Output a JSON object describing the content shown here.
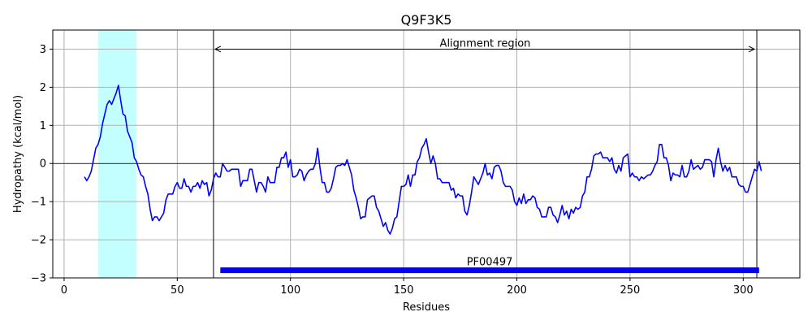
{
  "chart_data": {
    "type": "line",
    "title": "Q9F3K5",
    "xlabel": "Residues",
    "ylabel": "Hydropathy (kcal/mol)",
    "xlim": [
      -5,
      325
    ],
    "ylim": [
      -3,
      3.5
    ],
    "xticks": [
      0,
      50,
      100,
      150,
      200,
      250,
      300
    ],
    "yticks": [
      -3,
      -2,
      -1,
      0,
      1,
      2,
      3
    ],
    "xtick_labels": [
      "0",
      "50",
      "100",
      "150",
      "200",
      "250",
      "300"
    ],
    "ytick_labels": [
      "−3",
      "−2",
      "−1",
      "0",
      "1",
      "2",
      "3"
    ],
    "grid": true,
    "colors": {
      "line": "#0000ff",
      "highlight": "#c4ffff",
      "domain_bar": "#0000ff",
      "axes": "#000000",
      "grid": "#b0b0b0"
    },
    "highlight_region": [
      15,
      32
    ],
    "alignment_region": {
      "label": "Alignment region",
      "start": 66,
      "end": 306,
      "y": 3.0
    },
    "domain": {
      "label": "PF00497",
      "start": 69,
      "end": 307,
      "y": -2.8
    },
    "series": [
      {
        "points": [
          [
            9,
            -0.35
          ],
          [
            10,
            -0.45
          ],
          [
            11,
            -0.35
          ],
          [
            12,
            -0.2
          ],
          [
            13,
            0.1
          ],
          [
            14,
            0.4
          ],
          [
            15,
            0.5
          ],
          [
            16,
            0.7
          ],
          [
            17,
            1.05
          ],
          [
            18,
            1.3
          ],
          [
            19,
            1.55
          ],
          [
            20,
            1.65
          ],
          [
            21,
            1.55
          ],
          [
            22,
            1.7
          ],
          [
            23,
            1.85
          ],
          [
            24,
            2.05
          ],
          [
            25,
            1.65
          ],
          [
            26,
            1.3
          ],
          [
            27,
            1.25
          ],
          [
            28,
            0.85
          ],
          [
            29,
            0.7
          ],
          [
            30,
            0.55
          ],
          [
            31,
            0.15
          ],
          [
            32,
            0.05
          ],
          [
            33,
            -0.15
          ],
          [
            34,
            -0.3
          ],
          [
            35,
            -0.35
          ],
          [
            36,
            -0.6
          ],
          [
            37,
            -0.8
          ],
          [
            38,
            -1.2
          ],
          [
            39,
            -1.5
          ],
          [
            40,
            -1.4
          ],
          [
            41,
            -1.4
          ],
          [
            42,
            -1.5
          ],
          [
            43,
            -1.4
          ],
          [
            44,
            -1.3
          ],
          [
            45,
            -0.95
          ],
          [
            46,
            -0.8
          ],
          [
            47,
            -0.8
          ],
          [
            48,
            -0.8
          ],
          [
            49,
            -0.6
          ],
          [
            50,
            -0.5
          ],
          [
            51,
            -0.65
          ],
          [
            52,
            -0.65
          ],
          [
            53,
            -0.4
          ],
          [
            54,
            -0.6
          ],
          [
            55,
            -0.6
          ],
          [
            56,
            -0.75
          ],
          [
            57,
            -0.6
          ],
          [
            58,
            -0.6
          ],
          [
            59,
            -0.5
          ],
          [
            60,
            -0.65
          ],
          [
            61,
            -0.45
          ],
          [
            62,
            -0.55
          ],
          [
            63,
            -0.5
          ],
          [
            64,
            -0.85
          ],
          [
            65,
            -0.7
          ],
          [
            66,
            -0.4
          ],
          [
            67,
            -0.25
          ],
          [
            68,
            -0.35
          ],
          [
            69,
            -0.35
          ],
          [
            70,
            0.0
          ],
          [
            71,
            -0.1
          ],
          [
            72,
            -0.2
          ],
          [
            73,
            -0.2
          ],
          [
            74,
            -0.15
          ],
          [
            75,
            -0.15
          ],
          [
            76,
            -0.15
          ],
          [
            77,
            -0.15
          ],
          [
            78,
            -0.6
          ],
          [
            79,
            -0.45
          ],
          [
            80,
            -0.45
          ],
          [
            81,
            -0.45
          ],
          [
            82,
            -0.15
          ],
          [
            83,
            -0.15
          ],
          [
            84,
            -0.45
          ],
          [
            85,
            -0.75
          ],
          [
            86,
            -0.5
          ],
          [
            87,
            -0.5
          ],
          [
            88,
            -0.6
          ],
          [
            89,
            -0.75
          ],
          [
            90,
            -0.35
          ],
          [
            91,
            -0.5
          ],
          [
            92,
            -0.5
          ],
          [
            93,
            -0.5
          ],
          [
            94,
            -0.1
          ],
          [
            95,
            -0.1
          ],
          [
            96,
            0.15
          ],
          [
            97,
            0.15
          ],
          [
            98,
            0.3
          ],
          [
            99,
            -0.1
          ],
          [
            100,
            0.1
          ],
          [
            101,
            -0.35
          ],
          [
            102,
            -0.35
          ],
          [
            103,
            -0.3
          ],
          [
            104,
            -0.15
          ],
          [
            105,
            -0.2
          ],
          [
            106,
            -0.45
          ],
          [
            107,
            -0.3
          ],
          [
            108,
            -0.2
          ],
          [
            109,
            -0.15
          ],
          [
            110,
            -0.15
          ],
          [
            111,
            0.0
          ],
          [
            112,
            0.4
          ],
          [
            113,
            -0.1
          ],
          [
            114,
            -0.5
          ],
          [
            115,
            -0.5
          ],
          [
            116,
            -0.75
          ],
          [
            117,
            -0.75
          ],
          [
            118,
            -0.65
          ],
          [
            119,
            -0.4
          ],
          [
            120,
            -0.1
          ],
          [
            121,
            -0.05
          ],
          [
            122,
            -0.05
          ],
          [
            123,
            0.0
          ],
          [
            124,
            -0.05
          ],
          [
            125,
            0.1
          ],
          [
            126,
            -0.1
          ],
          [
            127,
            -0.3
          ],
          [
            128,
            -0.7
          ],
          [
            129,
            -0.9
          ],
          [
            130,
            -1.15
          ],
          [
            131,
            -1.45
          ],
          [
            132,
            -1.4
          ],
          [
            133,
            -1.4
          ],
          [
            134,
            -0.95
          ],
          [
            135,
            -0.9
          ],
          [
            136,
            -0.85
          ],
          [
            137,
            -0.85
          ],
          [
            138,
            -1.15
          ],
          [
            139,
            -1.25
          ],
          [
            140,
            -1.45
          ],
          [
            141,
            -1.65
          ],
          [
            142,
            -1.55
          ],
          [
            143,
            -1.75
          ],
          [
            144,
            -1.85
          ],
          [
            145,
            -1.7
          ],
          [
            146,
            -1.45
          ],
          [
            147,
            -1.4
          ],
          [
            148,
            -1.0
          ],
          [
            149,
            -0.6
          ],
          [
            150,
            -0.6
          ],
          [
            151,
            -0.55
          ],
          [
            152,
            -0.3
          ],
          [
            153,
            -0.6
          ],
          [
            154,
            -0.3
          ],
          [
            155,
            -0.3
          ],
          [
            156,
            0.05
          ],
          [
            157,
            0.15
          ],
          [
            158,
            0.4
          ],
          [
            159,
            0.5
          ],
          [
            160,
            0.65
          ],
          [
            161,
            0.3
          ],
          [
            162,
            0.0
          ],
          [
            163,
            0.2
          ],
          [
            164,
            0.0
          ],
          [
            165,
            -0.4
          ],
          [
            166,
            -0.4
          ],
          [
            167,
            -0.5
          ],
          [
            168,
            -0.5
          ],
          [
            169,
            -0.5
          ],
          [
            170,
            -0.5
          ],
          [
            171,
            -0.7
          ],
          [
            172,
            -0.65
          ],
          [
            173,
            -0.9
          ],
          [
            174,
            -0.8
          ],
          [
            175,
            -0.85
          ],
          [
            176,
            -0.85
          ],
          [
            177,
            -1.25
          ],
          [
            178,
            -1.35
          ],
          [
            179,
            -1.1
          ],
          [
            180,
            -0.75
          ],
          [
            181,
            -0.35
          ],
          [
            182,
            -0.45
          ],
          [
            183,
            -0.55
          ],
          [
            184,
            -0.4
          ],
          [
            185,
            -0.25
          ],
          [
            186,
            0.0
          ],
          [
            187,
            -0.3
          ],
          [
            188,
            -0.25
          ],
          [
            189,
            -0.4
          ],
          [
            190,
            -0.1
          ],
          [
            191,
            -0.05
          ],
          [
            192,
            -0.05
          ],
          [
            193,
            -0.2
          ],
          [
            194,
            -0.5
          ],
          [
            195,
            -0.6
          ],
          [
            196,
            -0.6
          ],
          [
            197,
            -0.6
          ],
          [
            198,
            -0.7
          ],
          [
            199,
            -1.0
          ],
          [
            200,
            -1.1
          ],
          [
            201,
            -0.9
          ],
          [
            202,
            -1.05
          ],
          [
            203,
            -0.8
          ],
          [
            204,
            -1.05
          ],
          [
            205,
            -0.95
          ],
          [
            206,
            -0.95
          ],
          [
            207,
            -0.85
          ],
          [
            208,
            -0.9
          ],
          [
            209,
            -1.15
          ],
          [
            210,
            -1.2
          ],
          [
            211,
            -1.4
          ],
          [
            212,
            -1.4
          ],
          [
            213,
            -1.4
          ],
          [
            214,
            -1.15
          ],
          [
            215,
            -1.15
          ],
          [
            216,
            -1.35
          ],
          [
            217,
            -1.4
          ],
          [
            218,
            -1.55
          ],
          [
            219,
            -1.35
          ],
          [
            220,
            -1.1
          ],
          [
            221,
            -1.35
          ],
          [
            222,
            -1.25
          ],
          [
            223,
            -1.45
          ],
          [
            224,
            -1.2
          ],
          [
            225,
            -1.3
          ],
          [
            226,
            -1.15
          ],
          [
            227,
            -1.2
          ],
          [
            228,
            -1.15
          ],
          [
            229,
            -0.85
          ],
          [
            230,
            -0.75
          ],
          [
            231,
            -0.35
          ],
          [
            232,
            -0.35
          ],
          [
            233,
            -0.15
          ],
          [
            234,
            0.2
          ],
          [
            235,
            0.25
          ],
          [
            236,
            0.25
          ],
          [
            237,
            0.3
          ],
          [
            238,
            0.15
          ],
          [
            239,
            0.15
          ],
          [
            240,
            0.15
          ],
          [
            241,
            0.05
          ],
          [
            242,
            0.15
          ],
          [
            243,
            -0.15
          ],
          [
            244,
            -0.25
          ],
          [
            245,
            -0.05
          ],
          [
            246,
            -0.2
          ],
          [
            247,
            0.15
          ],
          [
            248,
            0.2
          ],
          [
            249,
            0.25
          ],
          [
            250,
            -0.35
          ],
          [
            251,
            -0.25
          ],
          [
            252,
            -0.35
          ],
          [
            253,
            -0.35
          ],
          [
            254,
            -0.45
          ],
          [
            255,
            -0.35
          ],
          [
            256,
            -0.4
          ],
          [
            257,
            -0.35
          ],
          [
            258,
            -0.3
          ],
          [
            259,
            -0.3
          ],
          [
            260,
            -0.2
          ],
          [
            261,
            -0.05
          ],
          [
            262,
            0.05
          ],
          [
            263,
            0.5
          ],
          [
            264,
            0.5
          ],
          [
            265,
            0.15
          ],
          [
            266,
            0.15
          ],
          [
            267,
            -0.05
          ],
          [
            268,
            -0.45
          ],
          [
            269,
            -0.25
          ],
          [
            270,
            -0.3
          ],
          [
            271,
            -0.3
          ],
          [
            272,
            -0.35
          ],
          [
            273,
            -0.05
          ],
          [
            274,
            -0.35
          ],
          [
            275,
            -0.35
          ],
          [
            276,
            -0.2
          ],
          [
            277,
            0.1
          ],
          [
            278,
            -0.15
          ],
          [
            279,
            -0.1
          ],
          [
            280,
            -0.05
          ],
          [
            281,
            -0.15
          ],
          [
            282,
            -0.1
          ],
          [
            283,
            0.1
          ],
          [
            284,
            0.1
          ],
          [
            285,
            0.1
          ],
          [
            286,
            0.05
          ],
          [
            287,
            -0.35
          ],
          [
            288,
            0.1
          ],
          [
            289,
            0.4
          ],
          [
            290,
            0.05
          ],
          [
            291,
            -0.2
          ],
          [
            292,
            -0.05
          ],
          [
            293,
            -0.2
          ],
          [
            294,
            -0.1
          ],
          [
            295,
            -0.35
          ],
          [
            296,
            -0.35
          ],
          [
            297,
            -0.35
          ],
          [
            298,
            -0.55
          ],
          [
            299,
            -0.6
          ],
          [
            300,
            -0.6
          ],
          [
            301,
            -0.75
          ],
          [
            302,
            -0.75
          ],
          [
            303,
            -0.55
          ],
          [
            304,
            -0.35
          ],
          [
            305,
            -0.15
          ],
          [
            306,
            -0.2
          ],
          [
            307,
            0.05
          ],
          [
            308,
            -0.2
          ]
        ]
      }
    ]
  }
}
